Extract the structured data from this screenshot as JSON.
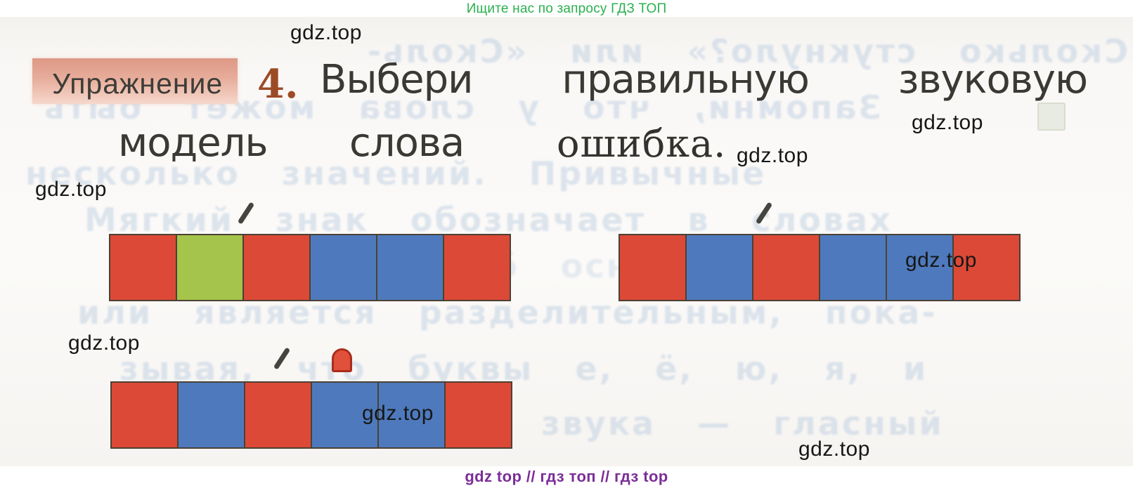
{
  "banner": {
    "text": "Ищите нас по запросу ГДЗ ТОП",
    "color": "#2ab04e"
  },
  "footer": {
    "text": "gdz top  //  гдз топ  //  гдз top",
    "color": "#7c2e97"
  },
  "watermark_text": "gdz.top",
  "exercise": {
    "label": "Упражнение",
    "number": "4.",
    "title_words_line1": [
      "Выбери",
      "правильную",
      "звуковую"
    ],
    "title_line2": {
      "word1": "модель",
      "word2": "слова",
      "target_word": "ошибка."
    }
  },
  "models": [
    {
      "id": 1,
      "squares": [
        "red",
        "green",
        "red",
        "blue",
        "blue",
        "red"
      ],
      "stress_mark": true,
      "softness_mark": false
    },
    {
      "id": 2,
      "squares": [
        "red",
        "blue",
        "red",
        "blue",
        "blue",
        "red"
      ],
      "stress_mark": true,
      "softness_mark": false
    },
    {
      "id": 3,
      "squares": [
        "red",
        "blue",
        "red",
        "blue",
        "blue",
        "red"
      ],
      "stress_mark": true,
      "softness_mark": true
    }
  ],
  "colors": {
    "vowel_red": "#dc4936",
    "soft_consonant_green": "#a5c44b",
    "hard_consonant_blue": "#4e7abd",
    "square_border": "#4b4134",
    "number_brown": "#9c4b27",
    "badge_pink_top": "#de9886",
    "badge_pink_bottom": "#f6d8cc"
  },
  "ghost": {
    "lines": [
      "«Сколько стукнуло?» или «Сколь-",
      "Запомни, что у слова может быть",
      "несколько значений. Привычные",
      "Мягкий знак обозначает в словах",
      "помни об основе слова",
      "или является разделительным, пока-",
      "зывая, что буквы е, ё, ю, я, и",
      "звука — гласный"
    ]
  }
}
